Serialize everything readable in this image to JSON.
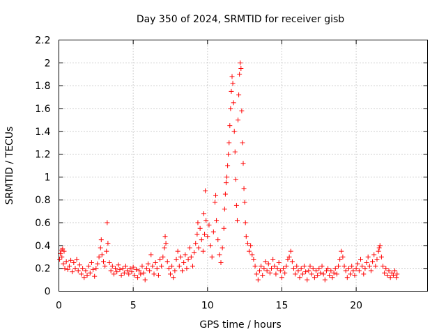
{
  "chart_data": {
    "type": "scatter",
    "title": "Day 350 of 2024, SRMTID for receiver gisb",
    "xlabel": "GPS time / hours",
    "ylabel": "SRMTID / TECUs",
    "xlim": [
      0,
      24.8
    ],
    "ylim": [
      0,
      2.2
    ],
    "xticks": [
      0,
      5,
      10,
      15,
      20
    ],
    "xtick_labels": [
      "0",
      "5",
      "10",
      "15",
      "20"
    ],
    "yticks": [
      0,
      0.2,
      0.4,
      0.6,
      0.8,
      1,
      1.2,
      1.4,
      1.6,
      1.8,
      2,
      2.2
    ],
    "ytick_labels": [
      "0",
      "0.2",
      "0.4",
      "0.6",
      "0.8",
      "1",
      "1.2",
      "1.4",
      "1.6",
      "1.8",
      "2",
      "2.2"
    ],
    "grid": true,
    "marker": "+",
    "color": "#ff0000",
    "series": [
      {
        "name": "SRMTID",
        "points": [
          [
            0.05,
            0.28
          ],
          [
            0.1,
            0.33
          ],
          [
            0.15,
            0.36
          ],
          [
            0.2,
            0.3
          ],
          [
            0.25,
            0.37
          ],
          [
            0.3,
            0.24
          ],
          [
            0.35,
            0.35
          ],
          [
            0.4,
            0.2
          ],
          [
            0.5,
            0.26
          ],
          [
            0.6,
            0.19
          ],
          [
            0.7,
            0.22
          ],
          [
            0.8,
            0.27
          ],
          [
            0.9,
            0.17
          ],
          [
            1.0,
            0.25
          ],
          [
            1.1,
            0.2
          ],
          [
            1.2,
            0.28
          ],
          [
            1.3,
            0.18
          ],
          [
            1.4,
            0.23
          ],
          [
            1.5,
            0.15
          ],
          [
            1.6,
            0.2
          ],
          [
            1.7,
            0.12
          ],
          [
            1.8,
            0.18
          ],
          [
            1.9,
            0.14
          ],
          [
            2.0,
            0.22
          ],
          [
            2.1,
            0.16
          ],
          [
            2.2,
            0.25
          ],
          [
            2.3,
            0.19
          ],
          [
            2.4,
            0.13
          ],
          [
            2.5,
            0.2
          ],
          [
            2.6,
            0.24
          ],
          [
            2.7,
            0.3
          ],
          [
            2.8,
            0.38
          ],
          [
            2.85,
            0.45
          ],
          [
            2.9,
            0.32
          ],
          [
            3.0,
            0.26
          ],
          [
            3.1,
            0.22
          ],
          [
            3.2,
            0.35
          ],
          [
            3.25,
            0.6
          ],
          [
            3.3,
            0.42
          ],
          [
            3.4,
            0.25
          ],
          [
            3.5,
            0.18
          ],
          [
            3.6,
            0.22
          ],
          [
            3.7,
            0.15
          ],
          [
            3.8,
            0.2
          ],
          [
            3.9,
            0.17
          ],
          [
            4.0,
            0.23
          ],
          [
            4.1,
            0.19
          ],
          [
            4.2,
            0.14
          ],
          [
            4.3,
            0.2
          ],
          [
            4.4,
            0.16
          ],
          [
            4.5,
            0.22
          ],
          [
            4.6,
            0.18
          ],
          [
            4.7,
            0.15
          ],
          [
            4.8,
            0.2
          ],
          [
            4.9,
            0.17
          ],
          [
            5.0,
            0.21
          ],
          [
            5.1,
            0.14
          ],
          [
            5.2,
            0.19
          ],
          [
            5.3,
            0.12
          ],
          [
            5.4,
            0.18
          ],
          [
            5.5,
            0.15
          ],
          [
            5.6,
            0.22
          ],
          [
            5.7,
            0.16
          ],
          [
            5.8,
            0.1
          ],
          [
            5.9,
            0.2
          ],
          [
            6.0,
            0.24
          ],
          [
            6.1,
            0.18
          ],
          [
            6.2,
            0.32
          ],
          [
            6.3,
            0.22
          ],
          [
            6.4,
            0.15
          ],
          [
            6.5,
            0.25
          ],
          [
            6.6,
            0.2
          ],
          [
            6.7,
            0.14
          ],
          [
            6.8,
            0.28
          ],
          [
            6.9,
            0.22
          ],
          [
            7.0,
            0.3
          ],
          [
            7.1,
            0.38
          ],
          [
            7.15,
            0.48
          ],
          [
            7.2,
            0.42
          ],
          [
            7.3,
            0.26
          ],
          [
            7.4,
            0.2
          ],
          [
            7.5,
            0.15
          ],
          [
            7.6,
            0.22
          ],
          [
            7.7,
            0.12
          ],
          [
            7.8,
            0.18
          ],
          [
            7.9,
            0.28
          ],
          [
            8.0,
            0.35
          ],
          [
            8.1,
            0.22
          ],
          [
            8.2,
            0.3
          ],
          [
            8.3,
            0.18
          ],
          [
            8.4,
            0.25
          ],
          [
            8.5,
            0.32
          ],
          [
            8.6,
            0.2
          ],
          [
            8.7,
            0.28
          ],
          [
            8.8,
            0.38
          ],
          [
            8.9,
            0.3
          ],
          [
            9.0,
            0.22
          ],
          [
            9.1,
            0.34
          ],
          [
            9.2,
            0.42
          ],
          [
            9.3,
            0.5
          ],
          [
            9.35,
            0.6
          ],
          [
            9.4,
            0.38
          ],
          [
            9.5,
            0.55
          ],
          [
            9.6,
            0.45
          ],
          [
            9.7,
            0.35
          ],
          [
            9.75,
            0.68
          ],
          [
            9.8,
            0.5
          ],
          [
            9.85,
            0.88
          ],
          [
            9.9,
            0.62
          ],
          [
            10.0,
            0.48
          ],
          [
            10.1,
            0.58
          ],
          [
            10.2,
            0.4
          ],
          [
            10.3,
            0.3
          ],
          [
            10.4,
            0.52
          ],
          [
            10.5,
            0.78
          ],
          [
            10.55,
            0.84
          ],
          [
            10.6,
            0.62
          ],
          [
            10.7,
            0.45
          ],
          [
            10.8,
            0.32
          ],
          [
            10.9,
            0.25
          ],
          [
            11.0,
            0.38
          ],
          [
            11.1,
            0.55
          ],
          [
            11.15,
            0.72
          ],
          [
            11.2,
            0.85
          ],
          [
            11.25,
            0.95
          ],
          [
            11.3,
            1.0
          ],
          [
            11.35,
            1.1
          ],
          [
            11.4,
            1.2
          ],
          [
            11.45,
            1.3
          ],
          [
            11.5,
            1.45
          ],
          [
            11.55,
            1.6
          ],
          [
            11.6,
            1.75
          ],
          [
            11.65,
            1.88
          ],
          [
            11.7,
            1.82
          ],
          [
            11.75,
            1.65
          ],
          [
            11.8,
            1.4
          ],
          [
            11.85,
            1.22
          ],
          [
            11.9,
            0.98
          ],
          [
            11.95,
            0.75
          ],
          [
            12.0,
            0.62
          ],
          [
            12.05,
            1.5
          ],
          [
            12.1,
            1.72
          ],
          [
            12.15,
            1.9
          ],
          [
            12.2,
            2.0
          ],
          [
            12.25,
            1.95
          ],
          [
            12.3,
            1.58
          ],
          [
            12.35,
            1.3
          ],
          [
            12.4,
            1.12
          ],
          [
            12.45,
            0.9
          ],
          [
            12.5,
            0.78
          ],
          [
            12.55,
            0.6
          ],
          [
            12.6,
            0.48
          ],
          [
            12.7,
            0.42
          ],
          [
            12.8,
            0.35
          ],
          [
            12.9,
            0.4
          ],
          [
            13.0,
            0.32
          ],
          [
            13.1,
            0.28
          ],
          [
            13.2,
            0.22
          ],
          [
            13.3,
            0.15
          ],
          [
            13.4,
            0.1
          ],
          [
            13.5,
            0.18
          ],
          [
            13.6,
            0.22
          ],
          [
            13.7,
            0.14
          ],
          [
            13.8,
            0.2
          ],
          [
            13.9,
            0.26
          ],
          [
            14.0,
            0.18
          ],
          [
            14.1,
            0.24
          ],
          [
            14.2,
            0.16
          ],
          [
            14.3,
            0.2
          ],
          [
            14.4,
            0.28
          ],
          [
            14.5,
            0.22
          ],
          [
            14.6,
            0.15
          ],
          [
            14.7,
            0.2
          ],
          [
            14.8,
            0.25
          ],
          [
            14.9,
            0.18
          ],
          [
            15.0,
            0.12
          ],
          [
            15.1,
            0.2
          ],
          [
            15.2,
            0.16
          ],
          [
            15.3,
            0.22
          ],
          [
            15.4,
            0.28
          ],
          [
            15.5,
            0.3
          ],
          [
            15.6,
            0.35
          ],
          [
            15.7,
            0.26
          ],
          [
            15.8,
            0.2
          ],
          [
            15.9,
            0.15
          ],
          [
            16.0,
            0.22
          ],
          [
            16.1,
            0.18
          ],
          [
            16.2,
            0.12
          ],
          [
            16.3,
            0.2
          ],
          [
            16.4,
            0.15
          ],
          [
            16.5,
            0.22
          ],
          [
            16.6,
            0.17
          ],
          [
            16.7,
            0.1
          ],
          [
            16.8,
            0.18
          ],
          [
            16.9,
            0.22
          ],
          [
            17.0,
            0.15
          ],
          [
            17.1,
            0.2
          ],
          [
            17.2,
            0.12
          ],
          [
            17.3,
            0.18
          ],
          [
            17.4,
            0.14
          ],
          [
            17.5,
            0.2
          ],
          [
            17.6,
            0.16
          ],
          [
            17.7,
            0.22
          ],
          [
            17.8,
            0.15
          ],
          [
            17.9,
            0.1
          ],
          [
            18.0,
            0.18
          ],
          [
            18.1,
            0.2
          ],
          [
            18.2,
            0.14
          ],
          [
            18.3,
            0.18
          ],
          [
            18.4,
            0.12
          ],
          [
            18.5,
            0.16
          ],
          [
            18.6,
            0.2
          ],
          [
            18.7,
            0.15
          ],
          [
            18.8,
            0.22
          ],
          [
            18.9,
            0.28
          ],
          [
            19.0,
            0.35
          ],
          [
            19.1,
            0.3
          ],
          [
            19.2,
            0.22
          ],
          [
            19.3,
            0.18
          ],
          [
            19.4,
            0.12
          ],
          [
            19.5,
            0.2
          ],
          [
            19.6,
            0.15
          ],
          [
            19.7,
            0.22
          ],
          [
            19.8,
            0.18
          ],
          [
            19.9,
            0.14
          ],
          [
            20.0,
            0.2
          ],
          [
            20.1,
            0.24
          ],
          [
            20.2,
            0.18
          ],
          [
            20.3,
            0.28
          ],
          [
            20.4,
            0.22
          ],
          [
            20.5,
            0.15
          ],
          [
            20.6,
            0.2
          ],
          [
            20.7,
            0.25
          ],
          [
            20.8,
            0.3
          ],
          [
            20.9,
            0.22
          ],
          [
            21.0,
            0.18
          ],
          [
            21.1,
            0.26
          ],
          [
            21.2,
            0.32
          ],
          [
            21.3,
            0.22
          ],
          [
            21.4,
            0.28
          ],
          [
            21.5,
            0.35
          ],
          [
            21.55,
            0.38
          ],
          [
            21.6,
            0.4
          ],
          [
            21.7,
            0.3
          ],
          [
            21.8,
            0.22
          ],
          [
            21.9,
            0.16
          ],
          [
            22.0,
            0.2
          ],
          [
            22.1,
            0.14
          ],
          [
            22.2,
            0.18
          ],
          [
            22.3,
            0.12
          ],
          [
            22.4,
            0.16
          ],
          [
            22.5,
            0.14
          ],
          [
            22.6,
            0.18
          ],
          [
            22.7,
            0.12
          ],
          [
            22.75,
            0.15
          ]
        ]
      }
    ]
  }
}
